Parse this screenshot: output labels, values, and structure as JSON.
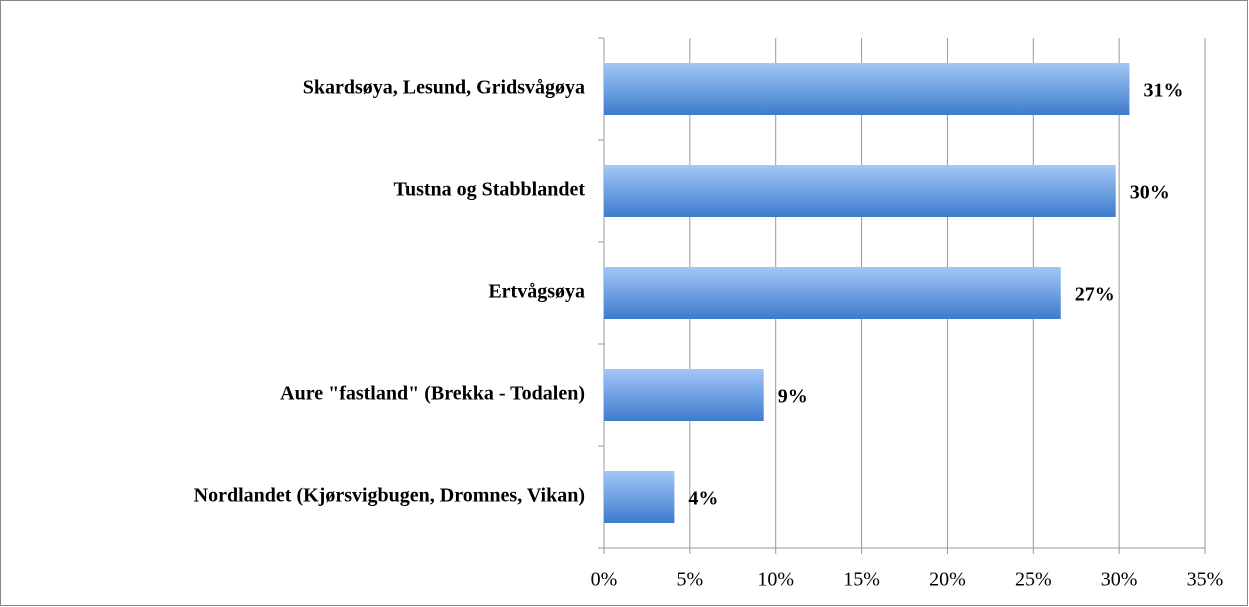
{
  "chart_data": {
    "type": "hbar",
    "categories": [
      "Skardsøya, Lesund, Gridsvågøya",
      "Tustna og Stabblandet",
      "Ertvågsøya",
      "Aure \"fastland\" (Brekka - Todalen)",
      "Nordlandet (Kjørsvigbugen, Dromnes, Vikan)"
    ],
    "values": [
      30.6,
      29.8,
      26.6,
      9.3,
      4.1
    ],
    "value_labels": [
      "31%",
      "30%",
      "27%",
      "9%",
      "4%"
    ],
    "color": [
      "#a3c7f7",
      "#3d7bcc"
    ],
    "xlim": [
      0,
      35
    ],
    "xticks": [
      {
        "value": 0,
        "label": "0%"
      },
      {
        "value": 5,
        "label": "5%"
      },
      {
        "value": 10,
        "label": "10%"
      },
      {
        "value": 15,
        "label": "15%"
      },
      {
        "value": 20,
        "label": "20%"
      },
      {
        "value": 25,
        "label": "25%"
      },
      {
        "value": 30,
        "label": "30%"
      },
      {
        "value": 35,
        "label": "35%"
      }
    ],
    "grid": true
  }
}
